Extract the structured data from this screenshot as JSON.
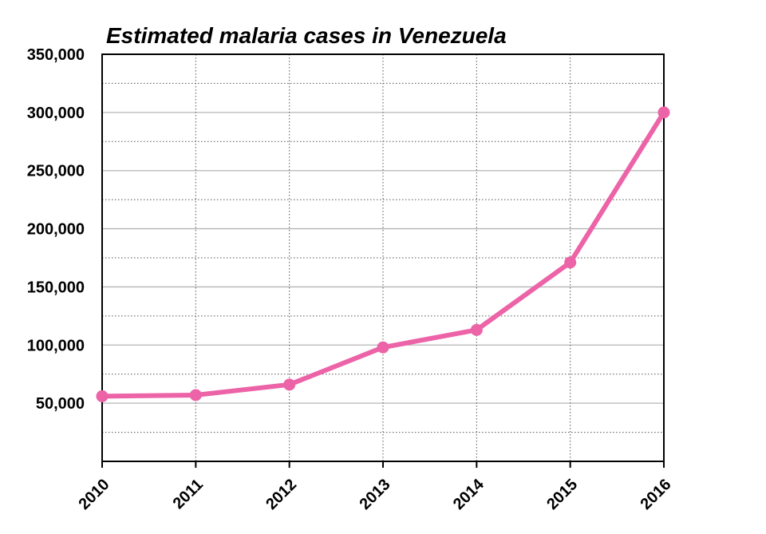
{
  "chart_data": {
    "type": "line",
    "title": "Estimated malaria cases in Venezuela",
    "xlabel": "",
    "ylabel": "",
    "categories": [
      "2010",
      "2011",
      "2012",
      "2013",
      "2014",
      "2015",
      "2016"
    ],
    "series": [
      {
        "name": "Estimated malaria cases",
        "values": [
          56000,
          57000,
          66000,
          98000,
          113000,
          171000,
          300000
        ],
        "color": "#ec63a7"
      }
    ],
    "ylim": [
      0,
      350000
    ],
    "yticks": [
      50000,
      100000,
      150000,
      200000,
      250000,
      300000,
      350000
    ],
    "ytick_labels": [
      "50,000",
      "100,000",
      "150,000",
      "200,000",
      "250,000",
      "300,000",
      "350,000"
    ],
    "grid": true,
    "legend": "none"
  }
}
